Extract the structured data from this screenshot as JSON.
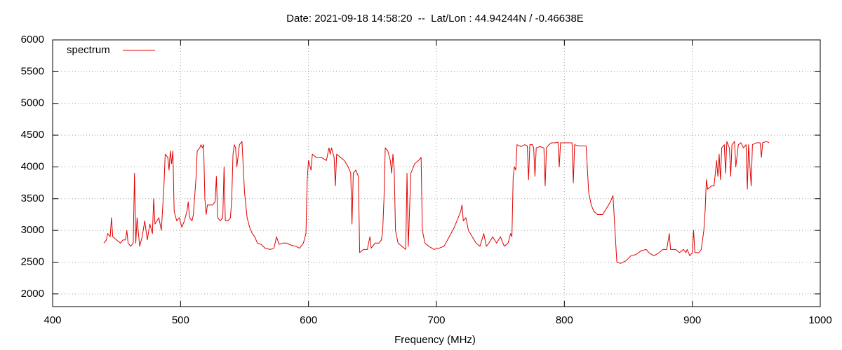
{
  "chart_data": {
    "type": "line",
    "title": "Date: 2021-09-18 14:58:20  --  Lat/Lon : 44.94244N / -0.46638E",
    "x_label": "Frequency (MHz)",
    "xlim": [
      400,
      1000
    ],
    "xticks": [
      400,
      500,
      600,
      700,
      800,
      900,
      1000
    ],
    "ylim": [
      1800,
      6000
    ],
    "yticks": [
      2000,
      2500,
      3000,
      3500,
      4000,
      4500,
      5000,
      5500,
      6000
    ],
    "grid": true,
    "legend": "top-left",
    "x": [
      440,
      442,
      443,
      445,
      446,
      447,
      450,
      453,
      455,
      457,
      458,
      459,
      461,
      463,
      464,
      465,
      466,
      468,
      470,
      472,
      474,
      476,
      478,
      479,
      480,
      483,
      485,
      487,
      488,
      490,
      491,
      492,
      493,
      494,
      495,
      497,
      499,
      501,
      503,
      505,
      506,
      507,
      509,
      510,
      512,
      513,
      515,
      516,
      517,
      518,
      519,
      520,
      521,
      523,
      525,
      527,
      528,
      529,
      531,
      533,
      534,
      535,
      537,
      539,
      540,
      541,
      542,
      543,
      544,
      546,
      548,
      549,
      550,
      552,
      554,
      556,
      558,
      560,
      563,
      566,
      570,
      573,
      575,
      577,
      580,
      583,
      586,
      590,
      593,
      596,
      598,
      599,
      600,
      602,
      603,
      606,
      610,
      614,
      616,
      617,
      618,
      620,
      621,
      622,
      625,
      628,
      631,
      633,
      634,
      635,
      637,
      639,
      640,
      643,
      646,
      648,
      649,
      652,
      655,
      657,
      658,
      659,
      660,
      662,
      664,
      665,
      666,
      667,
      668,
      670,
      673,
      676,
      677,
      678,
      680,
      683,
      686,
      688,
      689,
      691,
      694,
      698,
      702,
      706,
      710,
      714,
      717,
      719,
      720,
      721,
      723,
      725,
      728,
      731,
      734,
      737,
      739,
      741,
      744,
      747,
      750,
      753,
      756,
      758,
      759,
      760,
      761,
      762,
      763,
      766,
      769,
      771,
      772,
      773,
      775,
      776,
      777,
      778,
      781,
      784,
      785,
      786,
      788,
      790,
      793,
      795,
      796,
      797,
      800,
      803,
      806,
      807,
      808,
      811,
      814,
      817,
      819,
      821,
      823,
      826,
      830,
      833,
      836,
      838,
      841,
      844,
      848,
      852,
      856,
      860,
      864,
      866,
      870,
      874,
      877,
      880,
      882,
      883,
      887,
      890,
      893,
      895,
      896,
      898,
      900,
      901,
      902,
      905,
      907,
      909,
      910,
      911,
      912,
      915,
      917,
      918,
      919,
      920,
      921,
      922,
      923,
      925,
      926,
      927,
      929,
      930,
      931,
      933,
      934,
      936,
      938,
      940,
      942,
      943,
      944,
      946,
      947,
      950,
      953,
      954,
      955,
      958,
      960
    ],
    "series": [
      {
        "name": "spectrum",
        "color": "#e00000",
        "values": [
          2800,
          2850,
          2950,
          2900,
          3200,
          2900,
          2850,
          2800,
          2850,
          2850,
          3000,
          2800,
          2750,
          2800,
          3900,
          2800,
          3200,
          2750,
          2900,
          3150,
          2850,
          3100,
          2950,
          3500,
          3100,
          3200,
          3000,
          3700,
          4200,
          4150,
          3950,
          4250,
          4050,
          4250,
          3300,
          3150,
          3200,
          3050,
          3150,
          3300,
          3450,
          3200,
          3150,
          3250,
          3800,
          4250,
          4300,
          4350,
          4300,
          4350,
          3500,
          3250,
          3400,
          3400,
          3400,
          3450,
          3850,
          3200,
          3150,
          3200,
          4000,
          3150,
          3150,
          3200,
          3500,
          4200,
          4350,
          4300,
          4000,
          4350,
          4400,
          4000,
          3600,
          3200,
          3050,
          2950,
          2900,
          2800,
          2780,
          2720,
          2700,
          2720,
          2900,
          2780,
          2800,
          2800,
          2770,
          2750,
          2720,
          2800,
          2950,
          3800,
          4100,
          3950,
          4200,
          4150,
          4150,
          4100,
          4300,
          4200,
          4300,
          4150,
          3700,
          4200,
          4150,
          4100,
          4000,
          3900,
          3100,
          3900,
          3950,
          3850,
          2650,
          2700,
          2700,
          2900,
          2720,
          2800,
          2800,
          2850,
          3000,
          3500,
          4300,
          4250,
          4100,
          3900,
          4200,
          3950,
          3000,
          2800,
          2750,
          2700,
          3900,
          2750,
          3900,
          4050,
          4100,
          4150,
          3000,
          2800,
          2750,
          2700,
          2720,
          2750,
          2900,
          3050,
          3200,
          3300,
          3400,
          3150,
          3200,
          3000,
          2900,
          2800,
          2750,
          2950,
          2750,
          2800,
          2900,
          2800,
          2900,
          2750,
          2800,
          2950,
          2900,
          3850,
          4000,
          3950,
          4350,
          4320,
          4350,
          4330,
          3800,
          4350,
          4350,
          4300,
          3850,
          4300,
          4320,
          4300,
          3700,
          4300,
          4350,
          4380,
          4380,
          4390,
          4000,
          4380,
          4380,
          4380,
          4380,
          3750,
          4350,
          4330,
          4330,
          4330,
          3600,
          3400,
          3300,
          3250,
          3250,
          3350,
          3450,
          3550,
          2500,
          2480,
          2520,
          2600,
          2620,
          2680,
          2700,
          2650,
          2600,
          2650,
          2700,
          2700,
          2950,
          2700,
          2700,
          2650,
          2700,
          2650,
          2700,
          2600,
          2650,
          3000,
          2650,
          2650,
          2700,
          3000,
          3300,
          3800,
          3650,
          3700,
          3700,
          3900,
          4100,
          3850,
          4200,
          3800,
          4300,
          4350,
          3900,
          4400,
          4300,
          3850,
          4350,
          4400,
          4000,
          4350,
          4380,
          4300,
          4350,
          3650,
          4350,
          3700,
          4350,
          4380,
          4380,
          4150,
          4380,
          4400,
          4380
        ]
      }
    ]
  }
}
